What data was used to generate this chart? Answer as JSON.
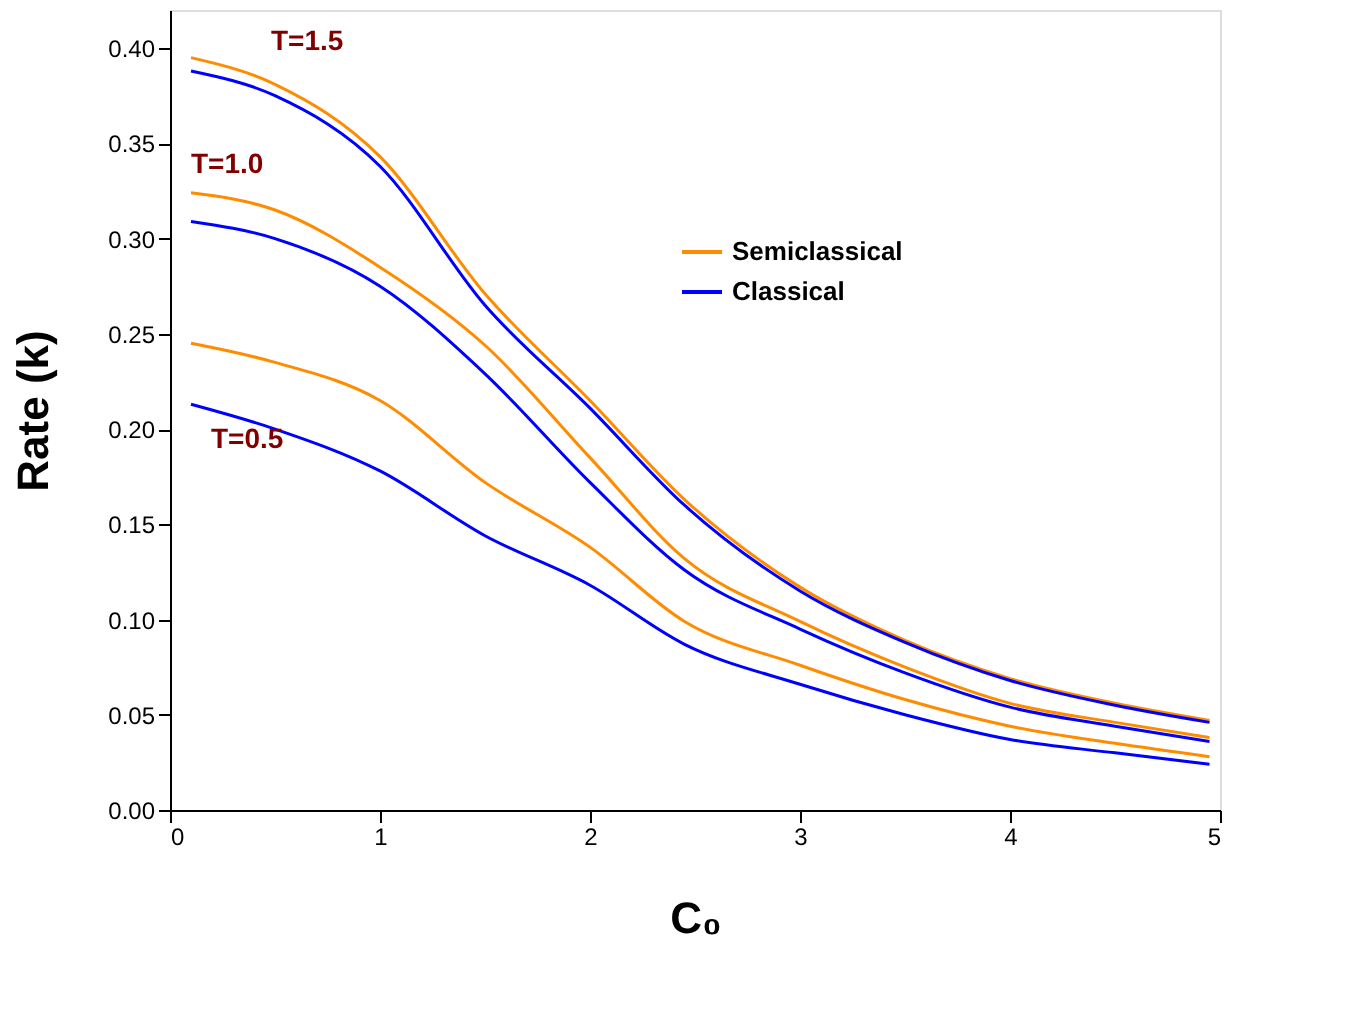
{
  "chart_data": {
    "type": "line",
    "xlabel": "C₀",
    "ylabel": "Rate (k)",
    "x": [
      0.1,
      0.5,
      1,
      1.5,
      2,
      2.45,
      3,
      3.5,
      4,
      4.5,
      4.95
    ],
    "series": [
      {
        "name": "Semiclassical",
        "color": "#ff8c00",
        "values": [
          0.395,
          0.381,
          0.343,
          0.271,
          0.215,
          0.163,
          0.117,
          0.089,
          0.069,
          0.056,
          0.047
        ]
      },
      {
        "name": "Classical",
        "color": "#0000ff",
        "values": [
          0.388,
          0.375,
          0.338,
          0.265,
          0.211,
          0.16,
          0.115,
          0.088,
          0.068,
          0.055,
          0.046
        ]
      },
      {
        "color": "#ff8c00",
        "values": [
          0.324,
          0.315,
          0.285,
          0.244,
          0.185,
          0.132,
          0.099,
          0.075,
          0.056,
          0.046,
          0.038
        ]
      },
      {
        "color": "#0000ff",
        "values": [
          0.309,
          0.3,
          0.275,
          0.229,
          0.172,
          0.126,
          0.095,
          0.072,
          0.054,
          0.044,
          0.036
        ]
      },
      {
        "color": "#ff8c00",
        "values": [
          0.245,
          0.235,
          0.215,
          0.172,
          0.138,
          0.099,
          0.076,
          0.058,
          0.044,
          0.035,
          0.028
        ]
      },
      {
        "color": "#0000ff",
        "values": [
          0.213,
          0.2,
          0.178,
          0.144,
          0.118,
          0.087,
          0.066,
          0.05,
          0.037,
          0.03,
          0.024
        ]
      }
    ],
    "annotations": [
      "T=1.5",
      "T=1.0",
      "T=0.5"
    ],
    "xlim": [
      0,
      5
    ],
    "xticks": [
      0,
      1,
      2,
      3,
      4,
      5
    ],
    "ylim": [
      0,
      0.42
    ],
    "yticks": [
      {
        "value": 0,
        "label": "0.00"
      },
      {
        "value": 0.05,
        "label": "0.05"
      },
      {
        "value": 0.1,
        "label": "0.10"
      },
      {
        "value": 0.15,
        "label": "0.15"
      },
      {
        "value": 0.2,
        "label": "0.20"
      },
      {
        "value": 0.25,
        "label": "0.25"
      },
      {
        "value": 0.3,
        "label": "0.30"
      },
      {
        "value": 0.35,
        "label": "0.35"
      },
      {
        "value": 0.4,
        "label": "0.40"
      }
    ],
    "grid": false,
    "legend": "top right",
    "marker": "none",
    "line_style": "solid"
  }
}
